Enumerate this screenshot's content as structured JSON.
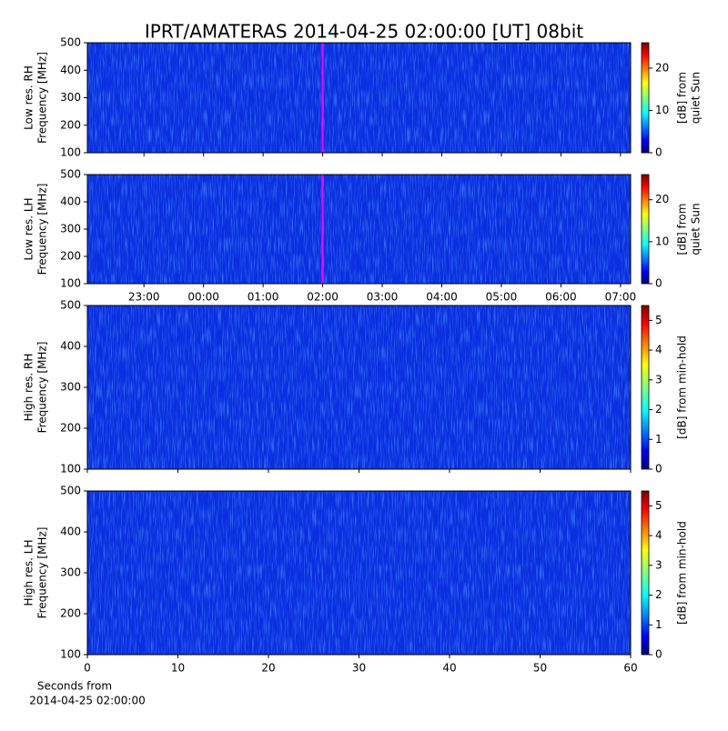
{
  "title": "IPRT/AMATERAS 2014-04-25 02:00:00 [UT]   08bit",
  "chart_data": [
    {
      "type": "heatmap",
      "ylabel": [
        "Low res. RH",
        "Frequency [MHz]"
      ],
      "xlim": [
        -1.95,
        7.17
      ],
      "xticks": [
        {
          "value": -1,
          "label": "23:00"
        },
        {
          "value": 0,
          "label": "00:00"
        },
        {
          "value": 1,
          "label": "01:00"
        },
        {
          "value": 2,
          "label": "02:00"
        },
        {
          "value": 3,
          "label": "03:00"
        },
        {
          "value": 4,
          "label": "04:00"
        },
        {
          "value": 5,
          "label": "05:00"
        },
        {
          "value": 6,
          "label": "06:00"
        },
        {
          "value": 7,
          "label": "07:00"
        }
      ],
      "xticklabels": false,
      "ylim": [
        100,
        500
      ],
      "yticks": [
        100,
        200,
        300,
        400,
        500
      ],
      "time_marker": 2,
      "marker_color": "#ff00ff",
      "colorbar": {
        "label": [
          "[dB] from",
          "quiet Sun"
        ],
        "lim": [
          0,
          26
        ],
        "ticks": [
          0,
          10,
          20
        ]
      }
    },
    {
      "type": "heatmap",
      "ylabel": [
        "Low res. LH",
        "Frequency [MHz]"
      ],
      "xlim": [
        -1.95,
        7.17
      ],
      "xticks": [
        {
          "value": -1,
          "label": "23:00"
        },
        {
          "value": 0,
          "label": "00:00"
        },
        {
          "value": 1,
          "label": "01:00"
        },
        {
          "value": 2,
          "label": "02:00"
        },
        {
          "value": 3,
          "label": "03:00"
        },
        {
          "value": 4,
          "label": "04:00"
        },
        {
          "value": 5,
          "label": "05:00"
        },
        {
          "value": 6,
          "label": "06:00"
        },
        {
          "value": 7,
          "label": "07:00"
        }
      ],
      "xticklabels": true,
      "ylim": [
        100,
        500
      ],
      "yticks": [
        100,
        200,
        300,
        400,
        500
      ],
      "time_marker": 2,
      "marker_color": "#ff00ff",
      "colorbar": {
        "label": [
          "[dB] from",
          "quiet Sun"
        ],
        "lim": [
          0,
          26
        ],
        "ticks": [
          0,
          10,
          20
        ]
      }
    },
    {
      "type": "heatmap",
      "ylabel": [
        "High res. RH",
        "Frequency [MHz]"
      ],
      "xlim": [
        0,
        60
      ],
      "xticks": [
        0,
        10,
        20,
        30,
        40,
        50,
        60
      ],
      "xticklabels": false,
      "ylim": [
        100,
        500
      ],
      "yticks": [
        100,
        200,
        300,
        400,
        500
      ],
      "colorbar": {
        "label": [
          "[dB] from min-hold"
        ],
        "lim": [
          0,
          5.5
        ],
        "ticks": [
          0,
          1,
          2,
          3,
          4,
          5
        ]
      }
    },
    {
      "type": "heatmap",
      "ylabel": [
        "High res. LH",
        "Frequency [MHz]"
      ],
      "xlim": [
        0,
        60
      ],
      "xticks": [
        0,
        10,
        20,
        30,
        40,
        50,
        60
      ],
      "xticklabels": true,
      "xlabel": [
        "Seconds from",
        "2014-04-25 02:00:00"
      ],
      "ylim": [
        100,
        500
      ],
      "yticks": [
        100,
        200,
        300,
        400,
        500
      ],
      "colorbar": {
        "label": [
          "[dB] from min-hold"
        ],
        "lim": [
          0,
          5.5
        ],
        "ticks": [
          0,
          1,
          2,
          3,
          4,
          5
        ]
      }
    }
  ]
}
